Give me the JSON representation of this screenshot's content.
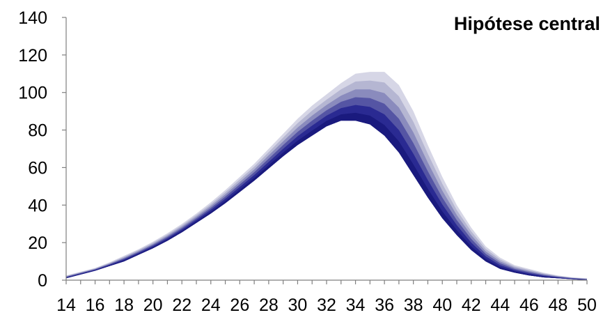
{
  "chart_data": {
    "type": "area",
    "title": "Hipótese central",
    "xlabel": "",
    "ylabel": "",
    "xlim": [
      14,
      50
    ],
    "ylim": [
      0,
      140
    ],
    "x_ticks": [
      14,
      16,
      18,
      20,
      22,
      24,
      26,
      28,
      30,
      32,
      34,
      36,
      38,
      40,
      42,
      44,
      46,
      48,
      50
    ],
    "y_ticks": [
      0,
      20,
      40,
      60,
      80,
      100,
      120,
      140
    ],
    "grid": false,
    "legend": "none",
    "x": [
      14,
      15,
      16,
      17,
      18,
      19,
      20,
      21,
      22,
      23,
      24,
      25,
      26,
      27,
      28,
      29,
      30,
      31,
      32,
      33,
      34,
      35,
      36,
      37,
      38,
      39,
      40,
      41,
      42,
      43,
      44,
      45,
      46,
      47,
      48,
      49,
      50
    ],
    "lower": [
      1,
      3,
      5,
      7.5,
      10,
      13.5,
      17,
      21,
      25.5,
      30.5,
      35.5,
      41,
      47,
      53,
      59.5,
      66,
      72,
      77,
      82,
      85,
      85,
      83,
      77,
      68,
      56,
      44,
      33,
      24,
      16,
      10,
      6,
      4,
      2.5,
      1.5,
      1,
      0.5,
      0
    ],
    "upper": [
      2.5,
      4.5,
      6.5,
      9.5,
      13,
      16.5,
      20.5,
      25,
      30,
      35.5,
      41.5,
      48,
      55,
      62,
      70,
      78,
      86,
      93,
      99,
      105,
      110,
      111,
      111,
      104,
      90,
      72,
      55,
      40,
      28,
      18,
      12,
      8,
      6,
      4,
      2.5,
      1.5,
      1
    ],
    "band_colors": [
      "#d6d6e6",
      "#b5b6d2",
      "#8a8bbd",
      "#5555a4",
      "#2a2a92",
      "#1a1a7e"
    ]
  }
}
